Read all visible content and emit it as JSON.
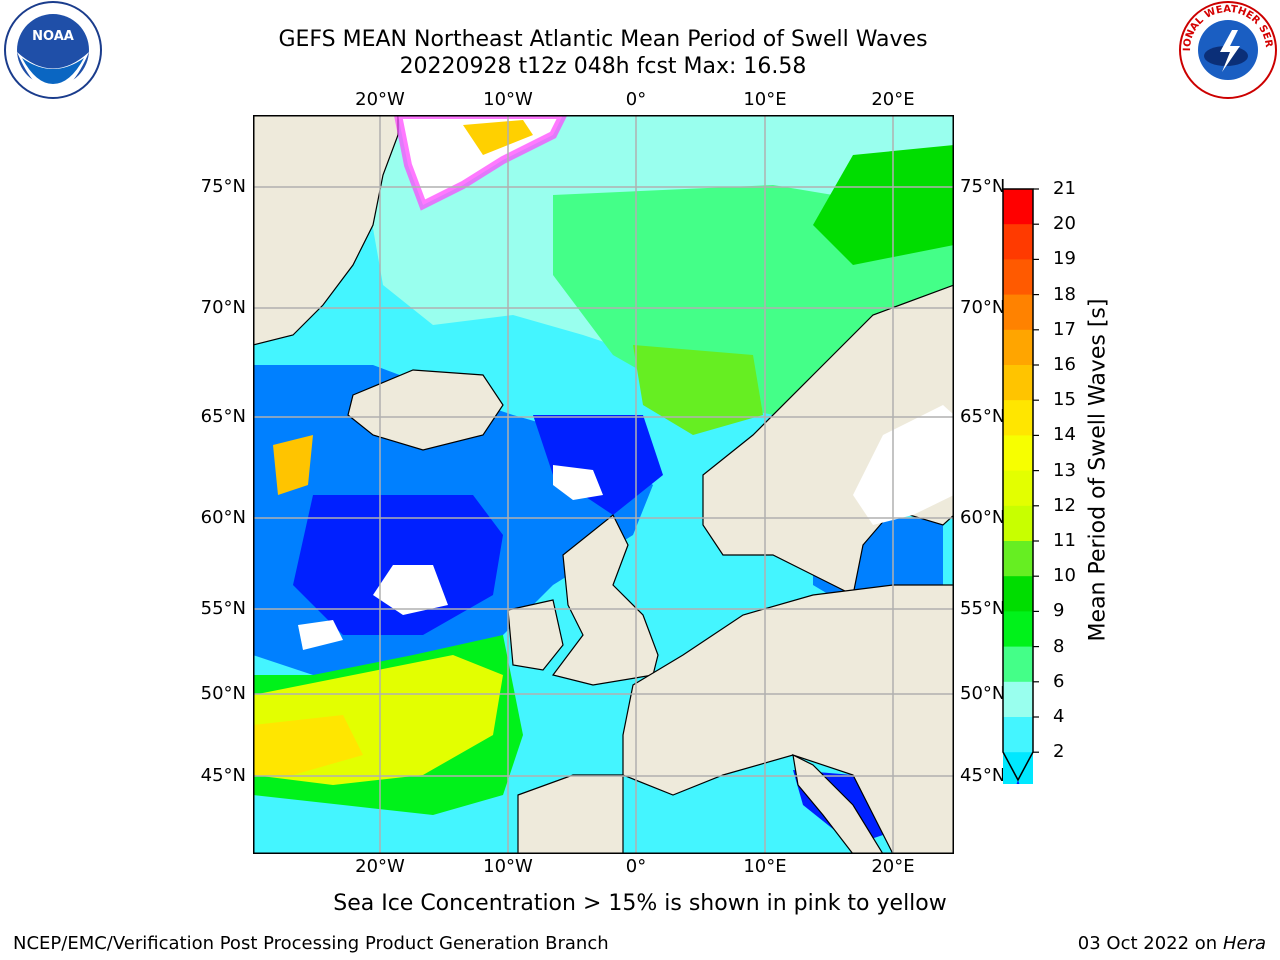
{
  "header": {
    "title_line1": "GEFS MEAN Northeast Atlantic Mean Period of Swell Waves",
    "title_line2": "20220928 t12z 048h fcst   Max: 16.58"
  },
  "map": {
    "lon_ticks": [
      "20°W",
      "10°W",
      "0°",
      "10°E",
      "20°E"
    ],
    "lat_ticks": [
      "75°N",
      "70°N",
      "65°N",
      "60°N",
      "55°N",
      "50°N",
      "45°N"
    ],
    "colors": {
      "land": "#eeeadb",
      "gridline": "#b0b0b0",
      "coast": "#000000",
      "sea_ice": "#ff40ff"
    }
  },
  "colorbar": {
    "title": "Mean Period of Swell Waves [s]",
    "labels": [
      "21",
      "20",
      "19",
      "18",
      "17",
      "16",
      "15",
      "14",
      "13",
      "12",
      "11",
      "10",
      "9",
      "8",
      "6",
      "4",
      "2"
    ],
    "colors": [
      "#ff0000",
      "#ff3a00",
      "#ff5a00",
      "#ff8200",
      "#ffa500",
      "#ffc400",
      "#ffe600",
      "#f7ff00",
      "#e3ff00",
      "#c8ff00",
      "#66ee22",
      "#00dd00",
      "#00f21a",
      "#44ff88",
      "#99ffee",
      "#44f5ff",
      "#00e8ff",
      "#0080ff",
      "#0020ff"
    ],
    "extend": "min"
  },
  "footer": {
    "note": "Sea Ice Concentration > 15% is shown in pink to yellow",
    "credit": "NCEP/EMC/Verification Post Processing Product Generation Branch",
    "date_prefix": "03 Oct 2022 on ",
    "date_system": "Hera"
  },
  "logos": {
    "noaa_text": "NOAA",
    "nws_text": "NATIONAL WEATHER SERVICE"
  }
}
